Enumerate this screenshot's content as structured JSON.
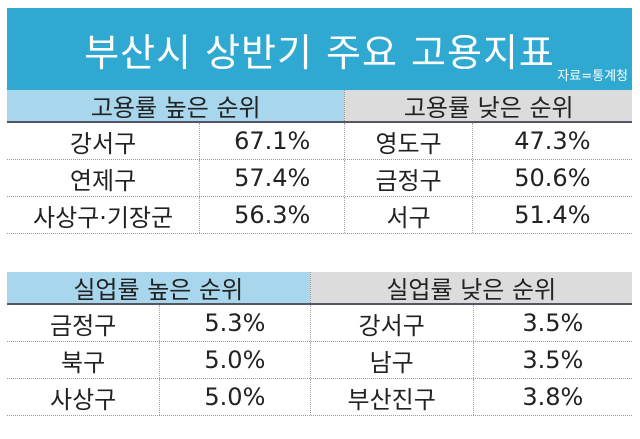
{
  "title": "부산시 상반기 주요 고용지표",
  "source": "자료=통계청",
  "employment": {
    "high_header": "고용률 높은 순위",
    "low_header": "고용률 낮은 순위",
    "rows": [
      {
        "high_name": "강서구",
        "high_value": "67.1%",
        "low_name": "영도구",
        "low_value": "47.3%"
      },
      {
        "high_name": "연제구",
        "high_value": "57.4%",
        "low_name": "금정구",
        "low_value": "50.6%"
      },
      {
        "high_name": "사상구·기장군",
        "high_value": "56.3%",
        "low_name": "서구",
        "low_value": "51.4%"
      }
    ]
  },
  "unemployment": {
    "high_header": "실업률 높은 순위",
    "low_header": "실업률 낮은 순위",
    "rows": [
      {
        "high_name": "금정구",
        "high_value": "5.3%",
        "low_name": "강서구",
        "low_value": "3.5%"
      },
      {
        "high_name": "북구",
        "high_value": "5.0%",
        "low_name": "남구",
        "low_value": "3.5%"
      },
      {
        "high_name": "사상구",
        "high_value": "5.0%",
        "low_name": "부산진구",
        "low_value": "3.8%"
      }
    ]
  },
  "colors": {
    "title_bg": "#2fa8d2",
    "high_header_bg": "#a8d6ec",
    "low_header_bg": "#dcdcdc"
  }
}
